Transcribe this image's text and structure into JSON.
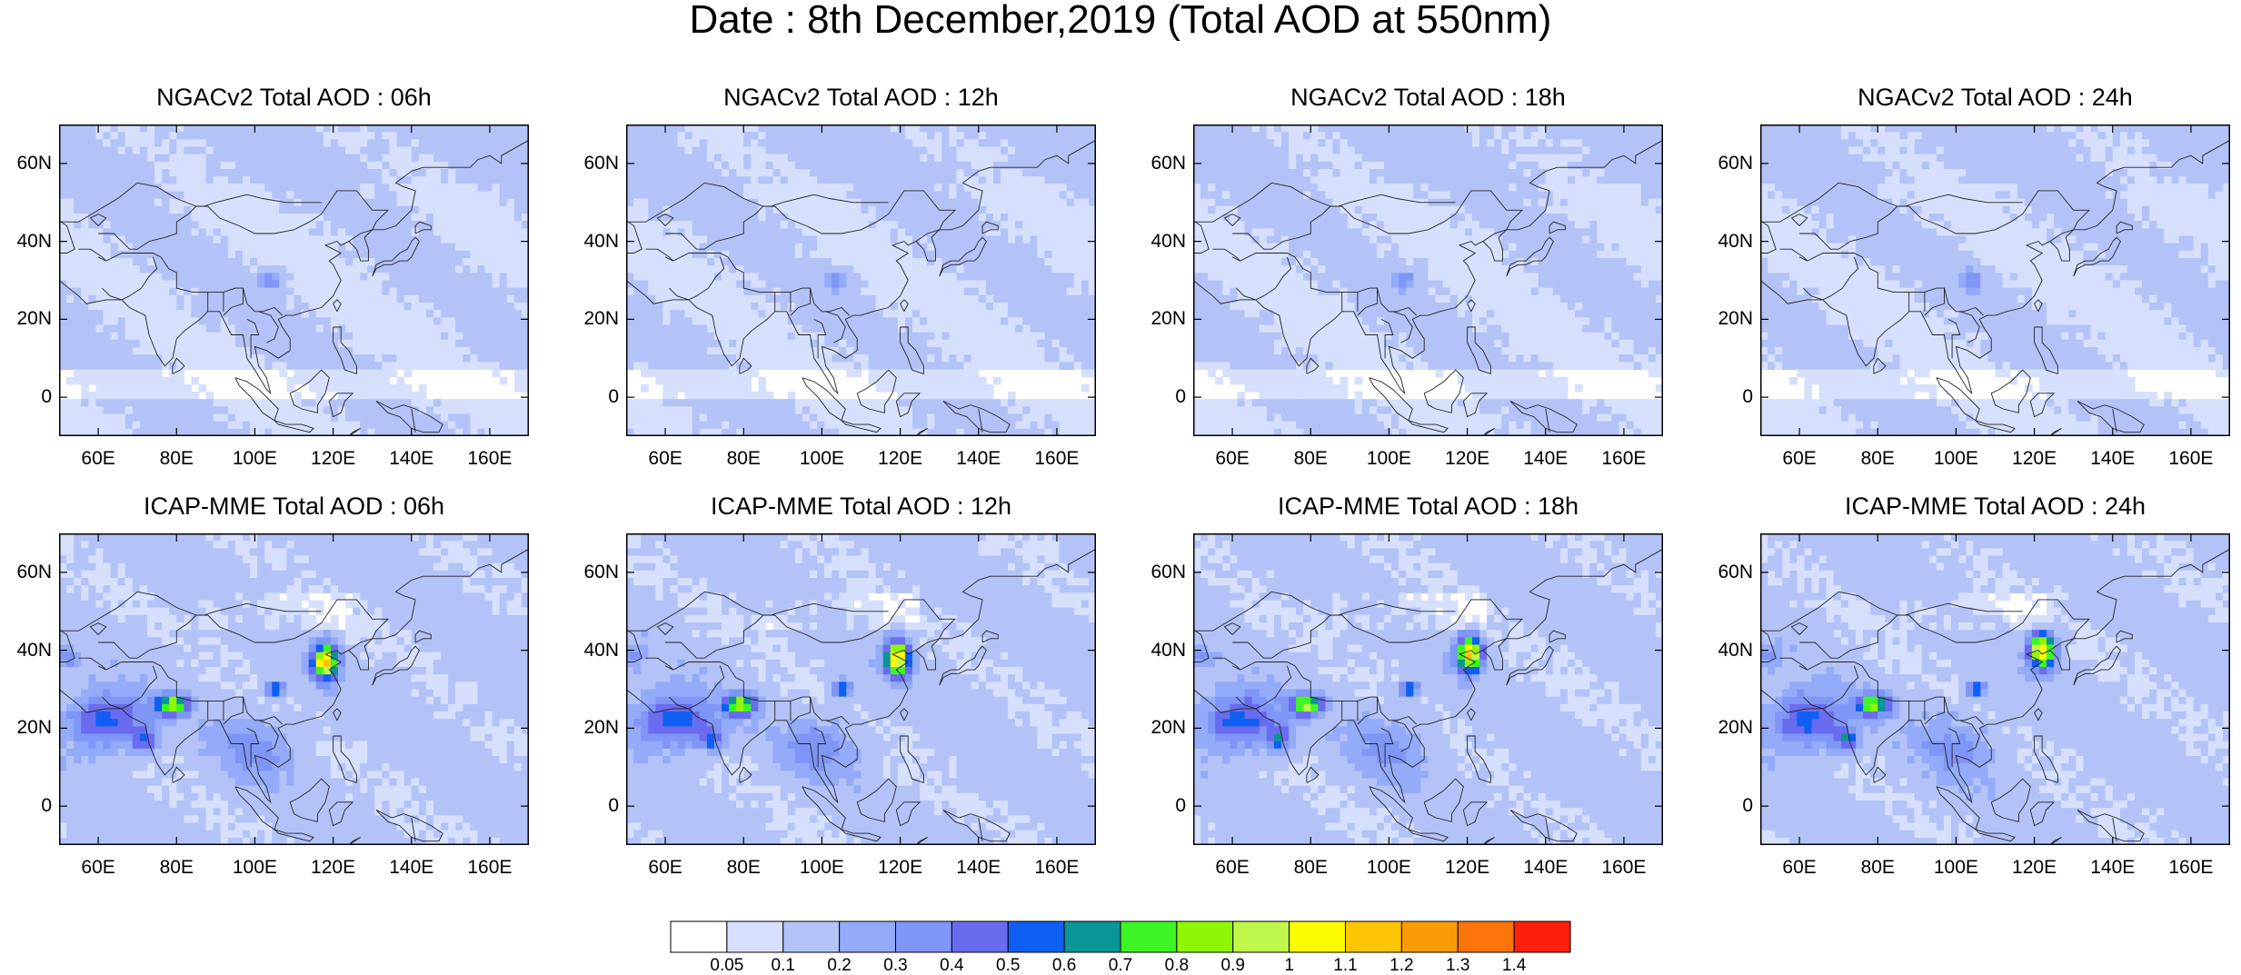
{
  "title": "Date : 8th December,2019 (Total AOD at 550nm)",
  "panels": [
    {
      "title": "NGACv2 Total AOD : 06h",
      "model": "ngac",
      "hour": 6
    },
    {
      "title": "NGACv2 Total AOD : 12h",
      "model": "ngac",
      "hour": 12
    },
    {
      "title": "NGACv2 Total AOD : 18h",
      "model": "ngac",
      "hour": 18
    },
    {
      "title": "NGACv2 Total AOD : 24h",
      "model": "ngac",
      "hour": 24
    },
    {
      "title": "ICAP-MME Total AOD : 06h",
      "model": "icap",
      "hour": 6
    },
    {
      "title": "ICAP-MME Total AOD : 12h",
      "model": "icap",
      "hour": 12
    },
    {
      "title": "ICAP-MME Total AOD : 18h",
      "model": "icap",
      "hour": 18
    },
    {
      "title": "ICAP-MME Total AOD : 24h",
      "model": "icap",
      "hour": 24
    }
  ],
  "axes": {
    "lat_ticks": [
      "60N",
      "40N",
      "20N",
      "0"
    ],
    "lon_ticks": [
      "60E",
      "80E",
      "100E",
      "120E",
      "140E",
      "160E"
    ],
    "lat_values": [
      60,
      40,
      20,
      0
    ],
    "lon_values": [
      60,
      80,
      100,
      120,
      140,
      160
    ],
    "lon_range": [
      50,
      170
    ],
    "lat_range": [
      -10,
      70
    ]
  },
  "colorbar": {
    "labels": [
      "0.05",
      "0.1",
      "0.2",
      "0.3",
      "0.4",
      "0.5",
      "0.6",
      "0.7",
      "0.8",
      "0.9",
      "1",
      "1.1",
      "1.2",
      "1.3",
      "1.4"
    ],
    "colors": [
      "#ffffff",
      "#d6e0fc",
      "#b3c3f8",
      "#93abf8",
      "#7f96f6",
      "#6a6cf0",
      "#0f5ff2",
      "#0a9696",
      "#3ef424",
      "#8ef804",
      "#bff84a",
      "#fdfb04",
      "#fec504",
      "#fd9b07",
      "#fd7408",
      "#fd200b"
    ]
  }
}
